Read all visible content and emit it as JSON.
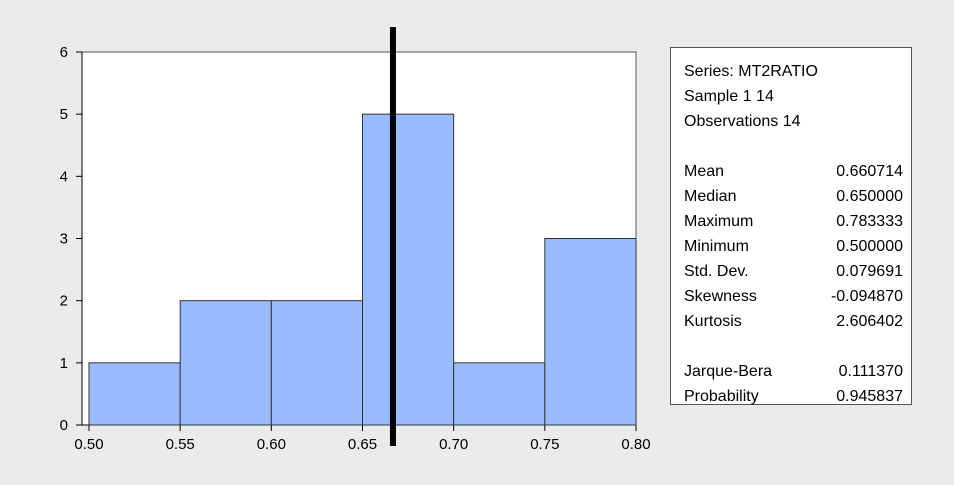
{
  "chart_data": {
    "type": "bar",
    "title": "",
    "xlabel": "",
    "ylabel": "",
    "bins": [
      {
        "from": 0.5,
        "to": 0.55,
        "count": 1
      },
      {
        "from": 0.55,
        "to": 0.6,
        "count": 2
      },
      {
        "from": 0.6,
        "to": 0.65,
        "count": 2
      },
      {
        "from": 0.65,
        "to": 0.7,
        "count": 5
      },
      {
        "from": 0.7,
        "to": 0.75,
        "count": 1
      },
      {
        "from": 0.75,
        "to": 0.8,
        "count": 3
      }
    ],
    "xlim": [
      0.5,
      0.8
    ],
    "ylim": [
      0,
      6
    ],
    "x_ticks": [
      "0.50",
      "0.55",
      "0.60",
      "0.65",
      "0.70",
      "0.75",
      "0.80"
    ],
    "y_ticks": [
      "0",
      "1",
      "2",
      "3",
      "4",
      "5",
      "6"
    ],
    "reference_line_x": 0.6667,
    "grid": false,
    "colors": {
      "bar_fill": "#99bbff",
      "bar_edge": "#333333",
      "reference_line": "#000000"
    }
  },
  "stats": {
    "series": "Series: MT2RATIO",
    "sample": "Sample 1 14",
    "observations": "Observations 14",
    "rows": [
      {
        "label": "Mean",
        "value": "0.660714"
      },
      {
        "label": "Median",
        "value": "0.650000"
      },
      {
        "label": "Maximum",
        "value": "0.783333"
      },
      {
        "label": "Minimum",
        "value": "0.500000"
      },
      {
        "label": "Std. Dev.",
        "value": "0.079691"
      },
      {
        "label": "Skewness",
        "value": "-0.094870"
      },
      {
        "label": "Kurtosis",
        "value": "2.606402"
      }
    ],
    "tests": [
      {
        "label": "Jarque-Bera",
        "value": "0.111370"
      },
      {
        "label": "Probability",
        "value": "0.945837"
      }
    ]
  }
}
